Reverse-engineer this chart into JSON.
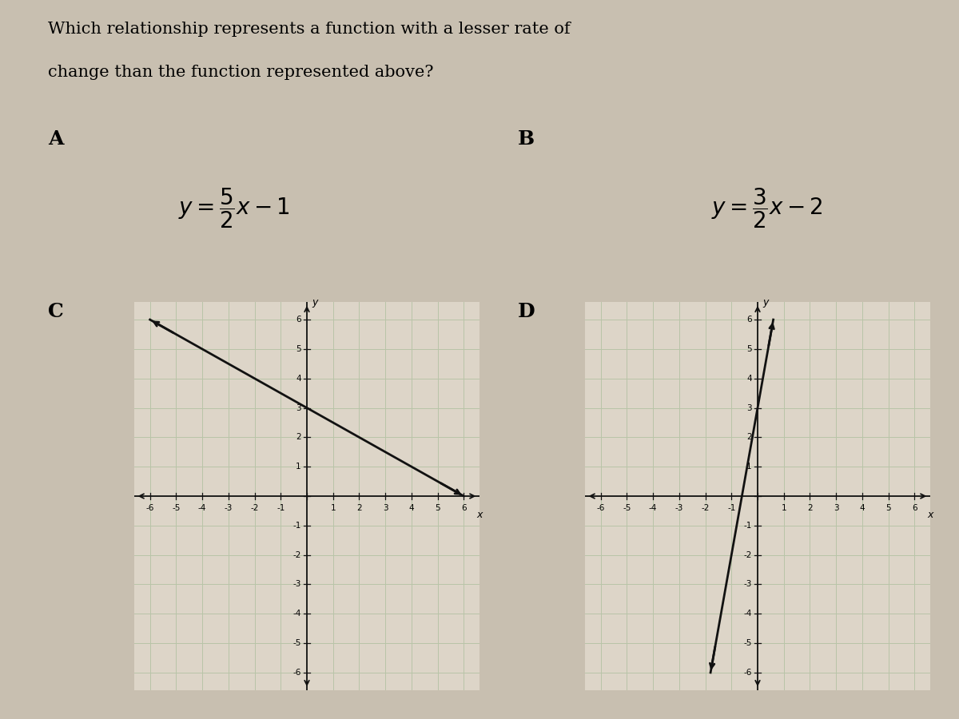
{
  "title_line1": "Which relationship represents a function with a lesser rate of",
  "title_line2": "change than the function represented above?",
  "title_fontsize": 15,
  "bg_color": "#c8bfb0",
  "paper_color": "#ddd5c8",
  "grid_color": "#b8c4a8",
  "axis_color": "#111111",
  "line_color": "#111111",
  "label_A": "A",
  "label_B": "B",
  "label_C": "C",
  "label_D": "D",
  "eq_A": "y = \\dfrac{5}{2}x - 1",
  "eq_B": "y = \\dfrac{3}{2}x - 2",
  "slope_C": -0.5,
  "intercept_C": 3,
  "slope_D": 5.0,
  "intercept_D": 3.0,
  "tick_range": 6,
  "label_fontsize": 18,
  "eq_fontsize": 20
}
